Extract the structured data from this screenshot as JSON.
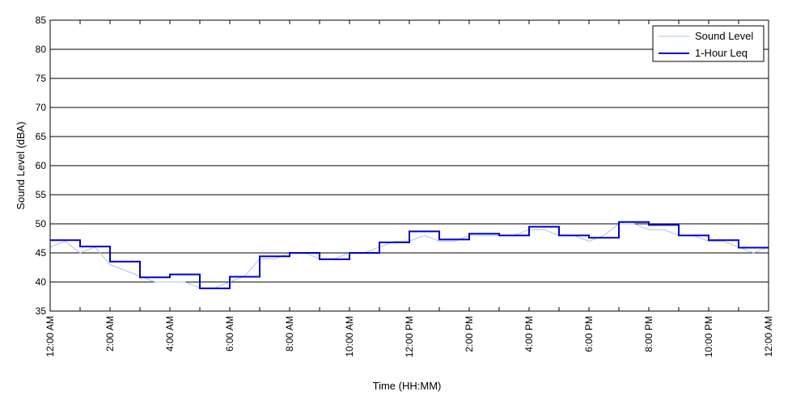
{
  "chart_data": {
    "type": "line",
    "title": "",
    "xlabel": "Time (HH:MM)",
    "ylabel": "Sound Level (dBA)",
    "xlim": [
      0,
      24
    ],
    "ylim": [
      35,
      85
    ],
    "y_ticks": [
      35,
      40,
      45,
      50,
      55,
      60,
      65,
      70,
      75,
      80,
      85
    ],
    "x_ticks": [
      {
        "hour": 0,
        "label": "12:00 AM"
      },
      {
        "hour": 2,
        "label": "2:00 AM"
      },
      {
        "hour": 4,
        "label": "4:00 AM"
      },
      {
        "hour": 6,
        "label": "6:00 AM"
      },
      {
        "hour": 8,
        "label": "8:00 AM"
      },
      {
        "hour": 10,
        "label": "10:00 AM"
      },
      {
        "hour": 12,
        "label": "12:00 PM"
      },
      {
        "hour": 14,
        "label": "2:00 PM"
      },
      {
        "hour": 16,
        "label": "4:00 PM"
      },
      {
        "hour": 18,
        "label": "6:00 PM"
      },
      {
        "hour": 20,
        "label": "8:00 PM"
      },
      {
        "hour": 22,
        "label": "10:00 PM"
      },
      {
        "hour": 24,
        "label": "12:00 AM"
      }
    ],
    "grid": "horizontal",
    "legend_position": "top-right",
    "series": [
      {
        "name": "Sound Level",
        "color": "#a7c3f2",
        "style": "thin-line",
        "x": [
          0,
          0.5,
          1,
          1.5,
          2,
          2.5,
          3,
          3.5,
          4,
          4.5,
          5,
          5.5,
          6,
          6.5,
          7,
          7.5,
          8,
          8.5,
          9,
          9.5,
          10,
          10.5,
          11,
          11.5,
          12,
          12.5,
          13,
          13.5,
          14,
          14.5,
          15,
          15.5,
          16,
          16.5,
          17,
          17.5,
          18,
          18.5,
          19,
          19.5,
          20,
          20.5,
          21,
          21.5,
          22,
          22.5,
          23,
          23.5,
          24
        ],
        "values": [
          46,
          47,
          45,
          46,
          43,
          42,
          41,
          40,
          40,
          40,
          39,
          39,
          40,
          41,
          44,
          44,
          45,
          45,
          44,
          44,
          45,
          45,
          46,
          47,
          47,
          48,
          47,
          47,
          48,
          48,
          48,
          48,
          49,
          49,
          48,
          48,
          47,
          48,
          50,
          50,
          49,
          49,
          48,
          48,
          47,
          47,
          46,
          45,
          46
        ]
      },
      {
        "name": "1-Hour Leq",
        "color": "#0000cc",
        "style": "step",
        "hour_values": [
          47.2,
          46.1,
          43.5,
          40.8,
          41.3,
          38.9,
          40.9,
          44.4,
          45.0,
          43.9,
          45.0,
          46.8,
          48.7,
          47.3,
          48.3,
          48.0,
          49.5,
          48.0,
          47.6,
          50.3,
          49.8,
          48.0,
          47.2,
          45.9
        ]
      }
    ]
  }
}
